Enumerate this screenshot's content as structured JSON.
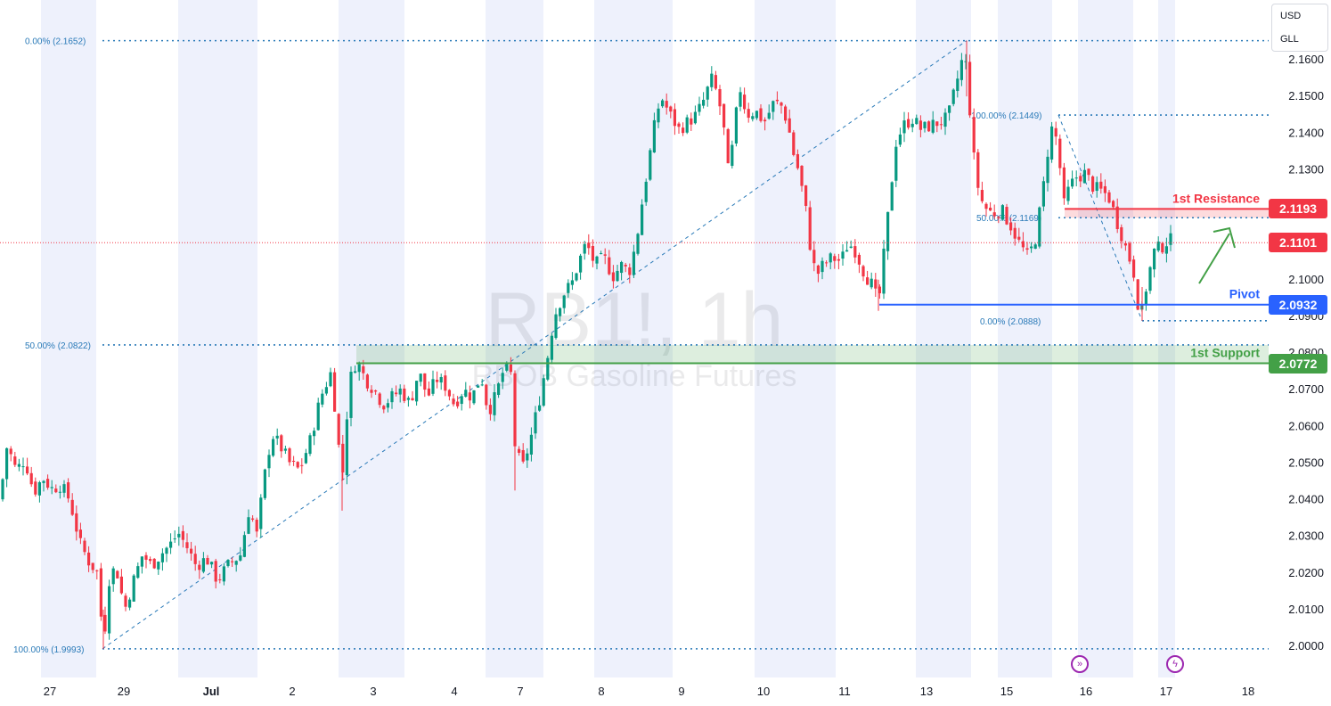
{
  "chart_data": {
    "type": "candlestick",
    "symbol": "RB1!, 1h",
    "description": "RBOB Gasoline Futures",
    "currency": "USD",
    "unit": "GLL",
    "ylim": [
      1.9958,
      2.1695
    ],
    "y_ticks": [
      "2.1600",
      "2.1500",
      "2.1400",
      "2.1300",
      "2.1200",
      "2.1100",
      "2.1000",
      "2.0900",
      "2.0800",
      "2.0700",
      "2.0600",
      "2.0500",
      "2.0400",
      "2.0300",
      "2.0200",
      "2.0100",
      "2.0000"
    ],
    "x_ticks": [
      "27",
      "29",
      "Jul",
      "2",
      "3",
      "4",
      "7",
      "8",
      "9",
      "10",
      "11",
      "13",
      "15",
      "16",
      "17",
      "18"
    ],
    "price_path": [
      [
        0,
        2.04
      ],
      [
        8,
        2.055
      ],
      [
        18,
        2.048
      ],
      [
        28,
        2.051
      ],
      [
        38,
        2.042
      ],
      [
        48,
        2.046
      ],
      [
        58,
        2.043
      ],
      [
        68,
        2.044
      ],
      [
        78,
        2.04
      ],
      [
        90,
        2.028
      ],
      [
        100,
        2.023
      ],
      [
        110,
        2.02
      ],
      [
        116,
        1.9993
      ],
      [
        122,
        2.018
      ],
      [
        130,
        2.022
      ],
      [
        140,
        2.01
      ],
      [
        150,
        2.018
      ],
      [
        160,
        2.025
      ],
      [
        170,
        2.022
      ],
      [
        180,
        2.025
      ],
      [
        192,
        2.028
      ],
      [
        200,
        2.031
      ],
      [
        210,
        2.027
      ],
      [
        220,
        2.022
      ],
      [
        232,
        2.024
      ],
      [
        244,
        2.018
      ],
      [
        256,
        2.022
      ],
      [
        270,
        2.025
      ],
      [
        280,
        2.038
      ],
      [
        288,
        2.03
      ],
      [
        296,
        2.045
      ],
      [
        305,
        2.058
      ],
      [
        316,
        2.054
      ],
      [
        325,
        2.05
      ],
      [
        336,
        2.048
      ],
      [
        348,
        2.056
      ],
      [
        360,
        2.068
      ],
      [
        372,
        2.075
      ],
      [
        384,
        2.045
      ],
      [
        392,
        2.072
      ],
      [
        400,
        2.078
      ],
      [
        410,
        2.073
      ],
      [
        420,
        2.07
      ],
      [
        430,
        2.066
      ],
      [
        440,
        2.068
      ],
      [
        450,
        2.07
      ],
      [
        460,
        2.066
      ],
      [
        470,
        2.075
      ],
      [
        480,
        2.068
      ],
      [
        490,
        2.073
      ],
      [
        500,
        2.071
      ],
      [
        510,
        2.066
      ],
      [
        520,
        2.07
      ],
      [
        530,
        2.068
      ],
      [
        540,
        2.074
      ],
      [
        548,
        2.064
      ],
      [
        556,
        2.068
      ],
      [
        566,
        2.076
      ],
      [
        574,
        2.074
      ],
      [
        578,
        2.055
      ],
      [
        586,
        2.048
      ],
      [
        596,
        2.057
      ],
      [
        606,
        2.068
      ],
      [
        614,
        2.078
      ],
      [
        622,
        2.09
      ],
      [
        632,
        2.096
      ],
      [
        642,
        2.099
      ],
      [
        650,
        2.105
      ],
      [
        658,
        2.11
      ],
      [
        668,
        2.104
      ],
      [
        678,
        2.106
      ],
      [
        688,
        2.101
      ],
      [
        698,
        2.104
      ],
      [
        706,
        2.102
      ],
      [
        714,
        2.11
      ],
      [
        720,
        2.12
      ],
      [
        728,
        2.132
      ],
      [
        736,
        2.144
      ],
      [
        742,
        2.15
      ],
      [
        752,
        2.145
      ],
      [
        762,
        2.141
      ],
      [
        772,
        2.143
      ],
      [
        782,
        2.145
      ],
      [
        792,
        2.15
      ],
      [
        798,
        2.155
      ],
      [
        806,
        2.15
      ],
      [
        812,
        2.142
      ],
      [
        818,
        2.128
      ],
      [
        824,
        2.14
      ],
      [
        830,
        2.153
      ],
      [
        838,
        2.145
      ],
      [
        848,
        2.146
      ],
      [
        858,
        2.143
      ],
      [
        868,
        2.148
      ],
      [
        876,
        2.148
      ],
      [
        884,
        2.143
      ],
      [
        890,
        2.135
      ],
      [
        896,
        2.13
      ],
      [
        904,
        2.12
      ],
      [
        910,
        2.108
      ],
      [
        916,
        2.101
      ],
      [
        924,
        2.104
      ],
      [
        934,
        2.106
      ],
      [
        944,
        2.105
      ],
      [
        952,
        2.11
      ],
      [
        960,
        2.108
      ],
      [
        970,
        2.102
      ],
      [
        980,
        2.098
      ],
      [
        986,
        2.093
      ],
      [
        994,
        2.111
      ],
      [
        1000,
        2.125
      ],
      [
        1006,
        2.138
      ],
      [
        1014,
        2.142
      ],
      [
        1024,
        2.144
      ],
      [
        1034,
        2.141
      ],
      [
        1044,
        2.142
      ],
      [
        1054,
        2.143
      ],
      [
        1064,
        2.144
      ],
      [
        1072,
        2.152
      ],
      [
        1080,
        2.16
      ],
      [
        1086,
        2.158
      ],
      [
        1090,
        2.14
      ],
      [
        1096,
        2.127
      ],
      [
        1104,
        2.12
      ],
      [
        1114,
        2.118
      ],
      [
        1124,
        2.119
      ],
      [
        1134,
        2.115
      ],
      [
        1144,
        2.11
      ],
      [
        1154,
        2.106
      ],
      [
        1162,
        2.111
      ],
      [
        1170,
        2.123
      ],
      [
        1176,
        2.135
      ],
      [
        1182,
        2.143
      ],
      [
        1188,
        2.135
      ],
      [
        1194,
        2.12
      ],
      [
        1200,
        2.125
      ],
      [
        1208,
        2.128
      ],
      [
        1218,
        2.129
      ],
      [
        1228,
        2.125
      ],
      [
        1238,
        2.124
      ],
      [
        1246,
        2.122
      ],
      [
        1252,
        2.117
      ],
      [
        1258,
        2.113
      ],
      [
        1266,
        2.107
      ],
      [
        1272,
        2.103
      ],
      [
        1280,
        2.0888
      ],
      [
        1288,
        2.1
      ],
      [
        1296,
        2.108
      ],
      [
        1304,
        2.109
      ],
      [
        1312,
        2.111
      ],
      [
        1318,
        2.1101
      ]
    ],
    "levels": [
      {
        "label": "1st Resistance",
        "value": 2.1193,
        "value_label": "2.1193",
        "color": "#f23645"
      },
      {
        "label": "",
        "value": 2.1101,
        "value_label": "2.1101",
        "color": "#f23645"
      },
      {
        "label": "Pivot",
        "value": 2.0932,
        "value_label": "2.0932",
        "color": "#2962ff"
      },
      {
        "label": "1st Support",
        "value": 2.0772,
        "value_label": "2.0772",
        "color": "#43a047"
      }
    ],
    "fib_levels": [
      {
        "label": "0.00% (2.1652)",
        "value": 2.1652
      },
      {
        "label": "50.00% (2.0822)",
        "value": 2.0822
      },
      {
        "label": "100.00% (1.9993)",
        "value": 1.9993
      },
      {
        "label": "100.00% (2.1449)",
        "value": 2.1449
      },
      {
        "label": "50.00% (2.1169)",
        "value": 2.1169
      },
      {
        "label": "0.00% (2.0888)",
        "value": 2.0888
      }
    ],
    "colors": {
      "up": "#089981",
      "down": "#f23645",
      "fib": "#2a7ab8",
      "shade": "#eef1fc",
      "grid_text": "#131722"
    }
  }
}
